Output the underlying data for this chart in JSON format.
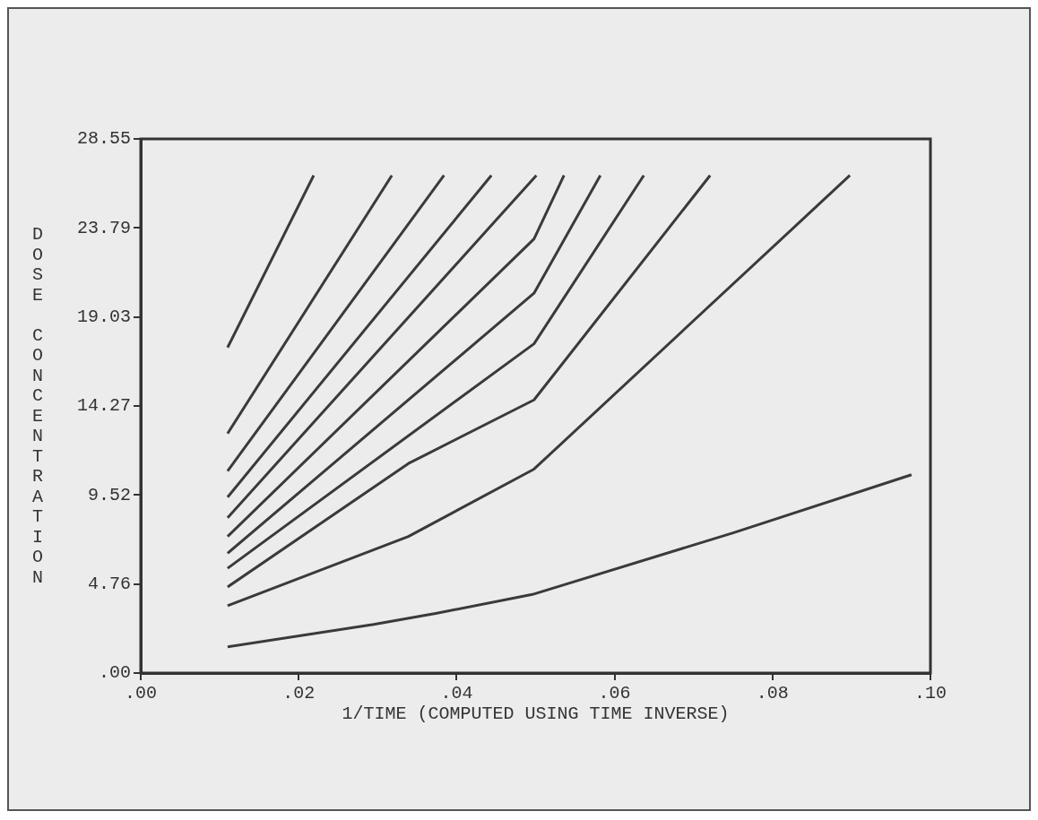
{
  "chart_data": {
    "type": "line",
    "xlabel": "1/TIME (COMPUTED USING TIME INVERSE)",
    "ylabel": "DOSE CONCENTRATION",
    "xlim": [
      0,
      0.1
    ],
    "xticks": [
      {
        "value": 0,
        "label": ".00"
      },
      {
        "value": 0.02,
        "label": ".02"
      },
      {
        "value": 0.04,
        "label": ".04"
      },
      {
        "value": 0.06,
        "label": ".06"
      },
      {
        "value": 0.08,
        "label": ".08"
      },
      {
        "value": 0.1,
        "label": ".10"
      }
    ],
    "ylim": [
      0,
      28.55
    ],
    "yticks": [
      {
        "value": 0,
        "label": ".00"
      },
      4.76,
      9.52,
      14.27,
      19.03,
      23.79,
      28.55
    ],
    "grid": false,
    "legend": false,
    "marker": "none",
    "line_style": "solid",
    "series": [
      {
        "color": "#3a3a3a",
        "x": [
          0.011,
          0.0219
        ],
        "values": [
          17.4,
          26.6
        ]
      },
      {
        "color": "#3a3a3a",
        "x": [
          0.011,
          0.0318
        ],
        "values": [
          12.8,
          26.6
        ]
      },
      {
        "color": "#3a3a3a",
        "x": [
          0.011,
          0.0384
        ],
        "values": [
          10.8,
          26.6
        ]
      },
      {
        "color": "#3a3a3a",
        "x": [
          0.011,
          0.0444
        ],
        "values": [
          9.4,
          26.6
        ]
      },
      {
        "color": "#3a3a3a",
        "x": [
          0.011,
          0.0501
        ],
        "values": [
          8.3,
          26.6
        ]
      },
      {
        "color": "#3a3a3a",
        "x": [
          0.011,
          0.0498,
          0.0536
        ],
        "values": [
          7.3,
          23.2,
          26.6
        ]
      },
      {
        "color": "#3a3a3a",
        "x": [
          0.011,
          0.0498,
          0.0582
        ],
        "values": [
          6.4,
          20.3,
          26.6
        ]
      },
      {
        "color": "#3a3a3a",
        "x": [
          0.011,
          0.0498,
          0.0637
        ],
        "values": [
          5.6,
          17.6,
          26.6
        ]
      },
      {
        "color": "#3a3a3a",
        "x": [
          0.011,
          0.0339,
          0.0498,
          0.0721
        ],
        "values": [
          4.6,
          11.2,
          14.6,
          26.6
        ]
      },
      {
        "color": "#3a3a3a",
        "x": [
          0.011,
          0.0339,
          0.0498,
          0.0898
        ],
        "values": [
          3.6,
          7.3,
          10.9,
          26.6
        ]
      },
      {
        "color": "#3a3a3a",
        "x": [
          0.011,
          0.0295,
          0.0375,
          0.0496,
          0.0751,
          0.0976
        ],
        "values": [
          1.4,
          2.6,
          3.2,
          4.2,
          7.5,
          10.6
        ]
      }
    ]
  }
}
